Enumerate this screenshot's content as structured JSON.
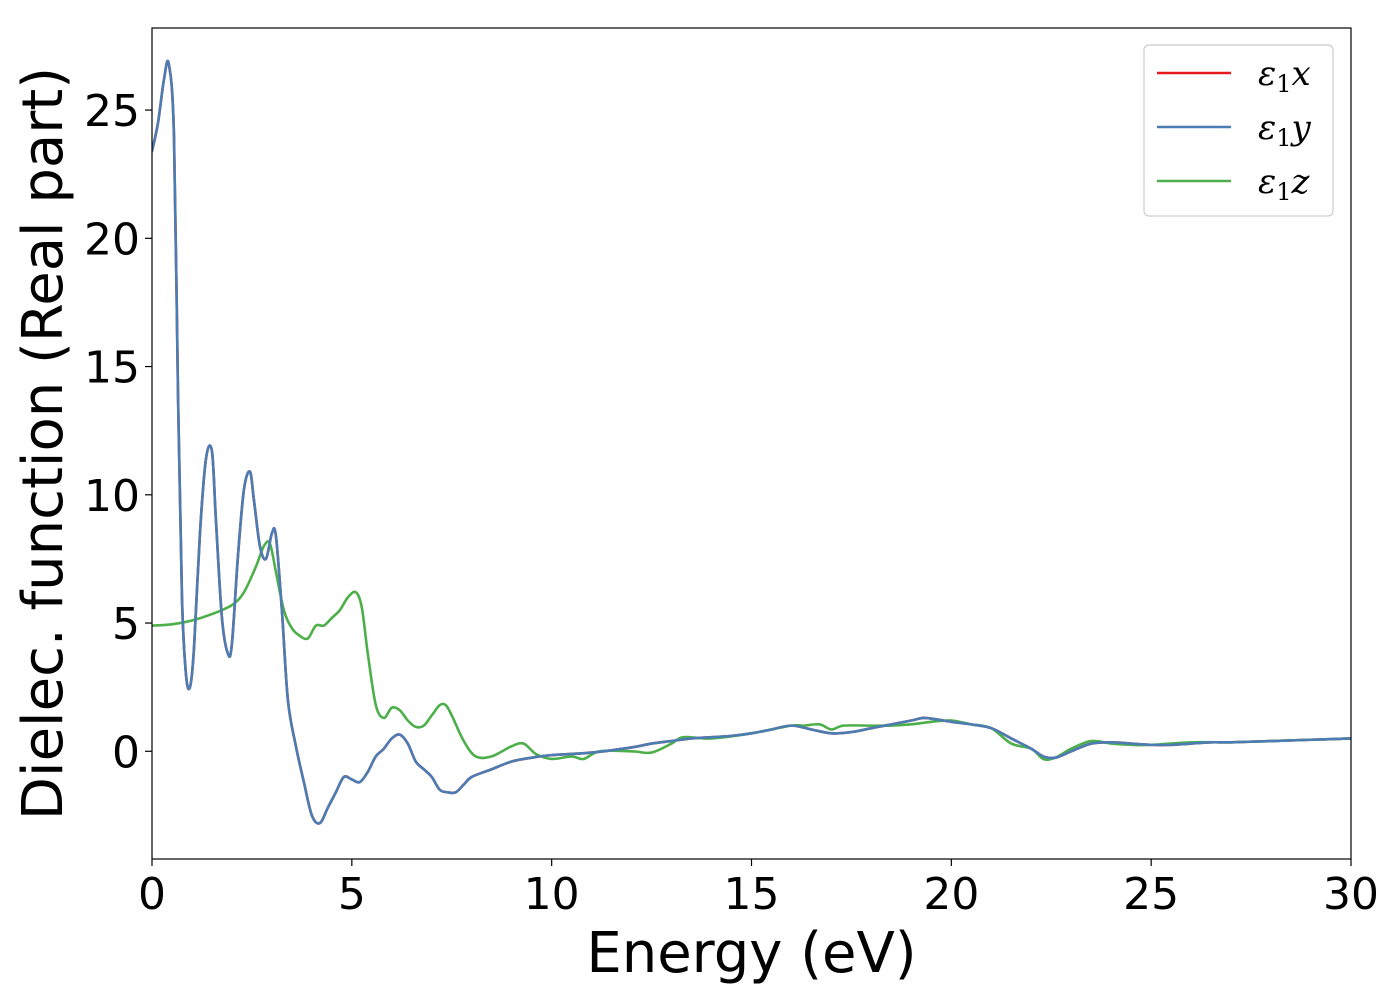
{
  "chart_data": {
    "type": "line",
    "title": "",
    "xlabel": "Energy (eV)",
    "ylabel": "Dielec. function (Real part)",
    "xlim": [
      0,
      30
    ],
    "ylim": [
      -4.2,
      28.2
    ],
    "xticks": [
      0,
      5,
      10,
      15,
      20,
      25,
      30
    ],
    "yticks": [
      0,
      5,
      10,
      15,
      20,
      25
    ],
    "grid": false,
    "legend_position": "top-right",
    "series": [
      {
        "name": "ε1x",
        "legend_base": "ε",
        "legend_sub": "1",
        "legend_var": "x",
        "color": "#e41a1c",
        "x": [
          0,
          0.15,
          0.3,
          0.42,
          0.55,
          0.65,
          0.75,
          0.85,
          0.95,
          1.05,
          1.2,
          1.35,
          1.5,
          1.6,
          1.75,
          1.9,
          2.0,
          2.15,
          2.3,
          2.45,
          2.55,
          2.7,
          2.85,
          3.0,
          3.1,
          3.25,
          3.4,
          3.6,
          3.8,
          4.0,
          4.2,
          4.4,
          4.6,
          4.8,
          5.0,
          5.2,
          5.4,
          5.6,
          5.8,
          6.0,
          6.2,
          6.4,
          6.6,
          6.8,
          7.0,
          7.2,
          7.4,
          7.6,
          7.8,
          8.0,
          8.5,
          9.0,
          9.5,
          10.0,
          11.0,
          12.0,
          12.5,
          13.0,
          13.5,
          14.0,
          14.5,
          15.0,
          15.5,
          16.0,
          16.5,
          17.0,
          17.5,
          18.0,
          18.5,
          19.0,
          19.3,
          19.6,
          20.0,
          20.5,
          21.0,
          21.5,
          22.0,
          22.3,
          22.6,
          23.0,
          23.5,
          24.0,
          24.5,
          25.0,
          25.5,
          26.0,
          26.5,
          27.0,
          28.0,
          29.0,
          30.0
        ],
        "values": [
          23.4,
          24.5,
          26.2,
          26.8,
          24.0,
          14.0,
          6.0,
          3.0,
          2.5,
          4.0,
          8.5,
          11.4,
          11.7,
          9.0,
          5.2,
          3.8,
          4.2,
          7.6,
          10.2,
          10.9,
          9.8,
          8.0,
          7.5,
          8.5,
          8.4,
          5.5,
          2.0,
          0.2,
          -1.2,
          -2.5,
          -2.8,
          -2.2,
          -1.6,
          -1.0,
          -1.1,
          -1.2,
          -0.8,
          -0.2,
          0.1,
          0.5,
          0.65,
          0.3,
          -0.4,
          -0.7,
          -1.0,
          -1.5,
          -1.6,
          -1.6,
          -1.3,
          -1.0,
          -0.7,
          -0.4,
          -0.25,
          -0.15,
          -0.05,
          0.15,
          0.3,
          0.4,
          0.5,
          0.55,
          0.6,
          0.7,
          0.85,
          1.0,
          0.85,
          0.7,
          0.75,
          0.9,
          1.05,
          1.2,
          1.3,
          1.25,
          1.15,
          1.05,
          0.9,
          0.5,
          0.1,
          -0.2,
          -0.25,
          0.0,
          0.3,
          0.35,
          0.3,
          0.25,
          0.25,
          0.3,
          0.35,
          0.35,
          0.4,
          0.45,
          0.5
        ]
      },
      {
        "name": "ε1y",
        "legend_base": "ε",
        "legend_sub": "1",
        "legend_var": "y",
        "color": "#4a7db3",
        "x": [
          0,
          0.15,
          0.3,
          0.42,
          0.55,
          0.65,
          0.75,
          0.85,
          0.95,
          1.05,
          1.2,
          1.35,
          1.5,
          1.6,
          1.75,
          1.9,
          2.0,
          2.15,
          2.3,
          2.45,
          2.55,
          2.7,
          2.85,
          3.0,
          3.1,
          3.25,
          3.4,
          3.6,
          3.8,
          4.0,
          4.2,
          4.4,
          4.6,
          4.8,
          5.0,
          5.2,
          5.4,
          5.6,
          5.8,
          6.0,
          6.2,
          6.4,
          6.6,
          6.8,
          7.0,
          7.2,
          7.4,
          7.6,
          7.8,
          8.0,
          8.5,
          9.0,
          9.5,
          10.0,
          11.0,
          12.0,
          12.5,
          13.0,
          13.5,
          14.0,
          14.5,
          15.0,
          15.5,
          16.0,
          16.5,
          17.0,
          17.5,
          18.0,
          18.5,
          19.0,
          19.3,
          19.6,
          20.0,
          20.5,
          21.0,
          21.5,
          22.0,
          22.3,
          22.6,
          23.0,
          23.5,
          24.0,
          24.5,
          25.0,
          25.5,
          26.0,
          26.5,
          27.0,
          28.0,
          29.0,
          30.0
        ],
        "values": [
          23.4,
          24.5,
          26.2,
          26.8,
          24.0,
          14.0,
          6.0,
          3.0,
          2.5,
          4.0,
          8.5,
          11.4,
          11.7,
          9.0,
          5.2,
          3.8,
          4.2,
          7.6,
          10.2,
          10.9,
          9.8,
          8.0,
          7.5,
          8.5,
          8.4,
          5.5,
          2.0,
          0.2,
          -1.2,
          -2.5,
          -2.8,
          -2.2,
          -1.6,
          -1.0,
          -1.1,
          -1.2,
          -0.8,
          -0.2,
          0.1,
          0.5,
          0.65,
          0.3,
          -0.4,
          -0.7,
          -1.0,
          -1.5,
          -1.6,
          -1.6,
          -1.3,
          -1.0,
          -0.7,
          -0.4,
          -0.25,
          -0.15,
          -0.05,
          0.15,
          0.3,
          0.4,
          0.5,
          0.55,
          0.6,
          0.7,
          0.85,
          1.0,
          0.85,
          0.7,
          0.75,
          0.9,
          1.05,
          1.2,
          1.3,
          1.25,
          1.15,
          1.05,
          0.9,
          0.5,
          0.1,
          -0.2,
          -0.25,
          0.0,
          0.3,
          0.35,
          0.3,
          0.25,
          0.25,
          0.3,
          0.35,
          0.35,
          0.4,
          0.45,
          0.5
        ]
      },
      {
        "name": "ε1z",
        "legend_base": "ε",
        "legend_sub": "1",
        "legend_var": "z",
        "color": "#4daf4a",
        "x": [
          0,
          0.5,
          1.0,
          1.5,
          2.0,
          2.3,
          2.6,
          2.8,
          2.95,
          3.1,
          3.3,
          3.5,
          3.7,
          3.9,
          4.1,
          4.3,
          4.5,
          4.7,
          4.9,
          5.1,
          5.25,
          5.4,
          5.6,
          5.8,
          6.0,
          6.2,
          6.4,
          6.6,
          6.8,
          7.0,
          7.2,
          7.35,
          7.5,
          7.8,
          8.1,
          8.5,
          9.0,
          9.3,
          9.6,
          10.0,
          10.5,
          10.8,
          11.2,
          12.0,
          12.5,
          13.0,
          13.3,
          14.0,
          15.0,
          16.0,
          16.3,
          16.7,
          17.0,
          17.3,
          18.0,
          18.5,
          19.0,
          19.5,
          20.0,
          20.5,
          21.0,
          21.5,
          22.0,
          22.3,
          22.6,
          23.0,
          23.5,
          24.0,
          24.5,
          25.0,
          26.0,
          27.0,
          28.0,
          29.0,
          30.0
        ],
        "values": [
          4.9,
          4.95,
          5.1,
          5.35,
          5.7,
          6.2,
          7.2,
          8.0,
          8.1,
          7.0,
          5.5,
          4.8,
          4.5,
          4.4,
          4.9,
          4.9,
          5.2,
          5.5,
          6.0,
          6.2,
          5.6,
          3.8,
          1.8,
          1.3,
          1.7,
          1.6,
          1.2,
          0.95,
          1.0,
          1.4,
          1.8,
          1.8,
          1.4,
          0.4,
          -0.2,
          -0.2,
          0.2,
          0.3,
          -0.1,
          -0.3,
          -0.2,
          -0.3,
          0.0,
          0.0,
          -0.05,
          0.3,
          0.55,
          0.5,
          0.7,
          1.0,
          1.0,
          1.05,
          0.85,
          1.0,
          1.0,
          1.0,
          1.05,
          1.15,
          1.2,
          1.05,
          0.9,
          0.3,
          0.1,
          -0.3,
          -0.25,
          0.1,
          0.4,
          0.3,
          0.25,
          0.25,
          0.35,
          0.35,
          0.4,
          0.45,
          0.5
        ]
      }
    ]
  }
}
